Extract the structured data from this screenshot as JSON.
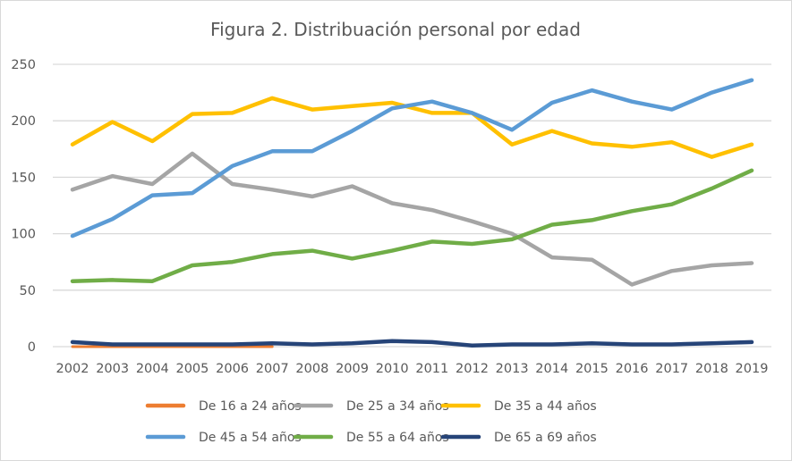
{
  "chart_data": {
    "type": "line",
    "title": "Figura 2. Distribuación personal por edad",
    "xlabel": "",
    "ylabel": "",
    "ylim": [
      0,
      250
    ],
    "yticks": [
      0,
      50,
      100,
      150,
      200,
      250
    ],
    "grid": true,
    "legend_position": "bottom",
    "categories": [
      "2002",
      "2003",
      "2004",
      "2005",
      "2006",
      "2007",
      "2008",
      "2009",
      "2010",
      "2011",
      "2012",
      "2013",
      "2014",
      "2015",
      "2016",
      "2017",
      "2018",
      "2019"
    ],
    "series": [
      {
        "name": "De 16 a 24 años",
        "color": "#ED7D31",
        "values": [
          0,
          0,
          0,
          0,
          0,
          0,
          null,
          null,
          null,
          null,
          null,
          null,
          null,
          null,
          null,
          null,
          null,
          null
        ]
      },
      {
        "name": "De 25 a 34 años",
        "color": "#A5A5A5",
        "values": [
          139,
          151,
          144,
          171,
          144,
          139,
          133,
          142,
          127,
          121,
          111,
          100,
          79,
          77,
          55,
          67,
          72,
          74
        ]
      },
      {
        "name": "De 35 a 44 años",
        "color": "#FFC000",
        "values": [
          179,
          199,
          182,
          206,
          207,
          220,
          210,
          213,
          216,
          207,
          207,
          179,
          191,
          180,
          177,
          181,
          168,
          179
        ]
      },
      {
        "name": "De 45 a 54 años",
        "color": "#5B9BD5",
        "values": [
          98,
          113,
          134,
          136,
          160,
          173,
          173,
          191,
          211,
          217,
          207,
          192,
          216,
          227,
          217,
          210,
          225,
          236
        ]
      },
      {
        "name": "De 55 a 64 años",
        "color": "#70AD47",
        "values": [
          58,
          59,
          58,
          72,
          75,
          82,
          85,
          78,
          85,
          93,
          91,
          95,
          108,
          112,
          120,
          126,
          140,
          156
        ]
      },
      {
        "name": "De 65 a 69 años",
        "color": "#264478",
        "values": [
          4,
          2,
          2,
          2,
          2,
          3,
          2,
          3,
          5,
          4,
          1,
          2,
          2,
          3,
          2,
          2,
          3,
          4
        ]
      }
    ]
  }
}
